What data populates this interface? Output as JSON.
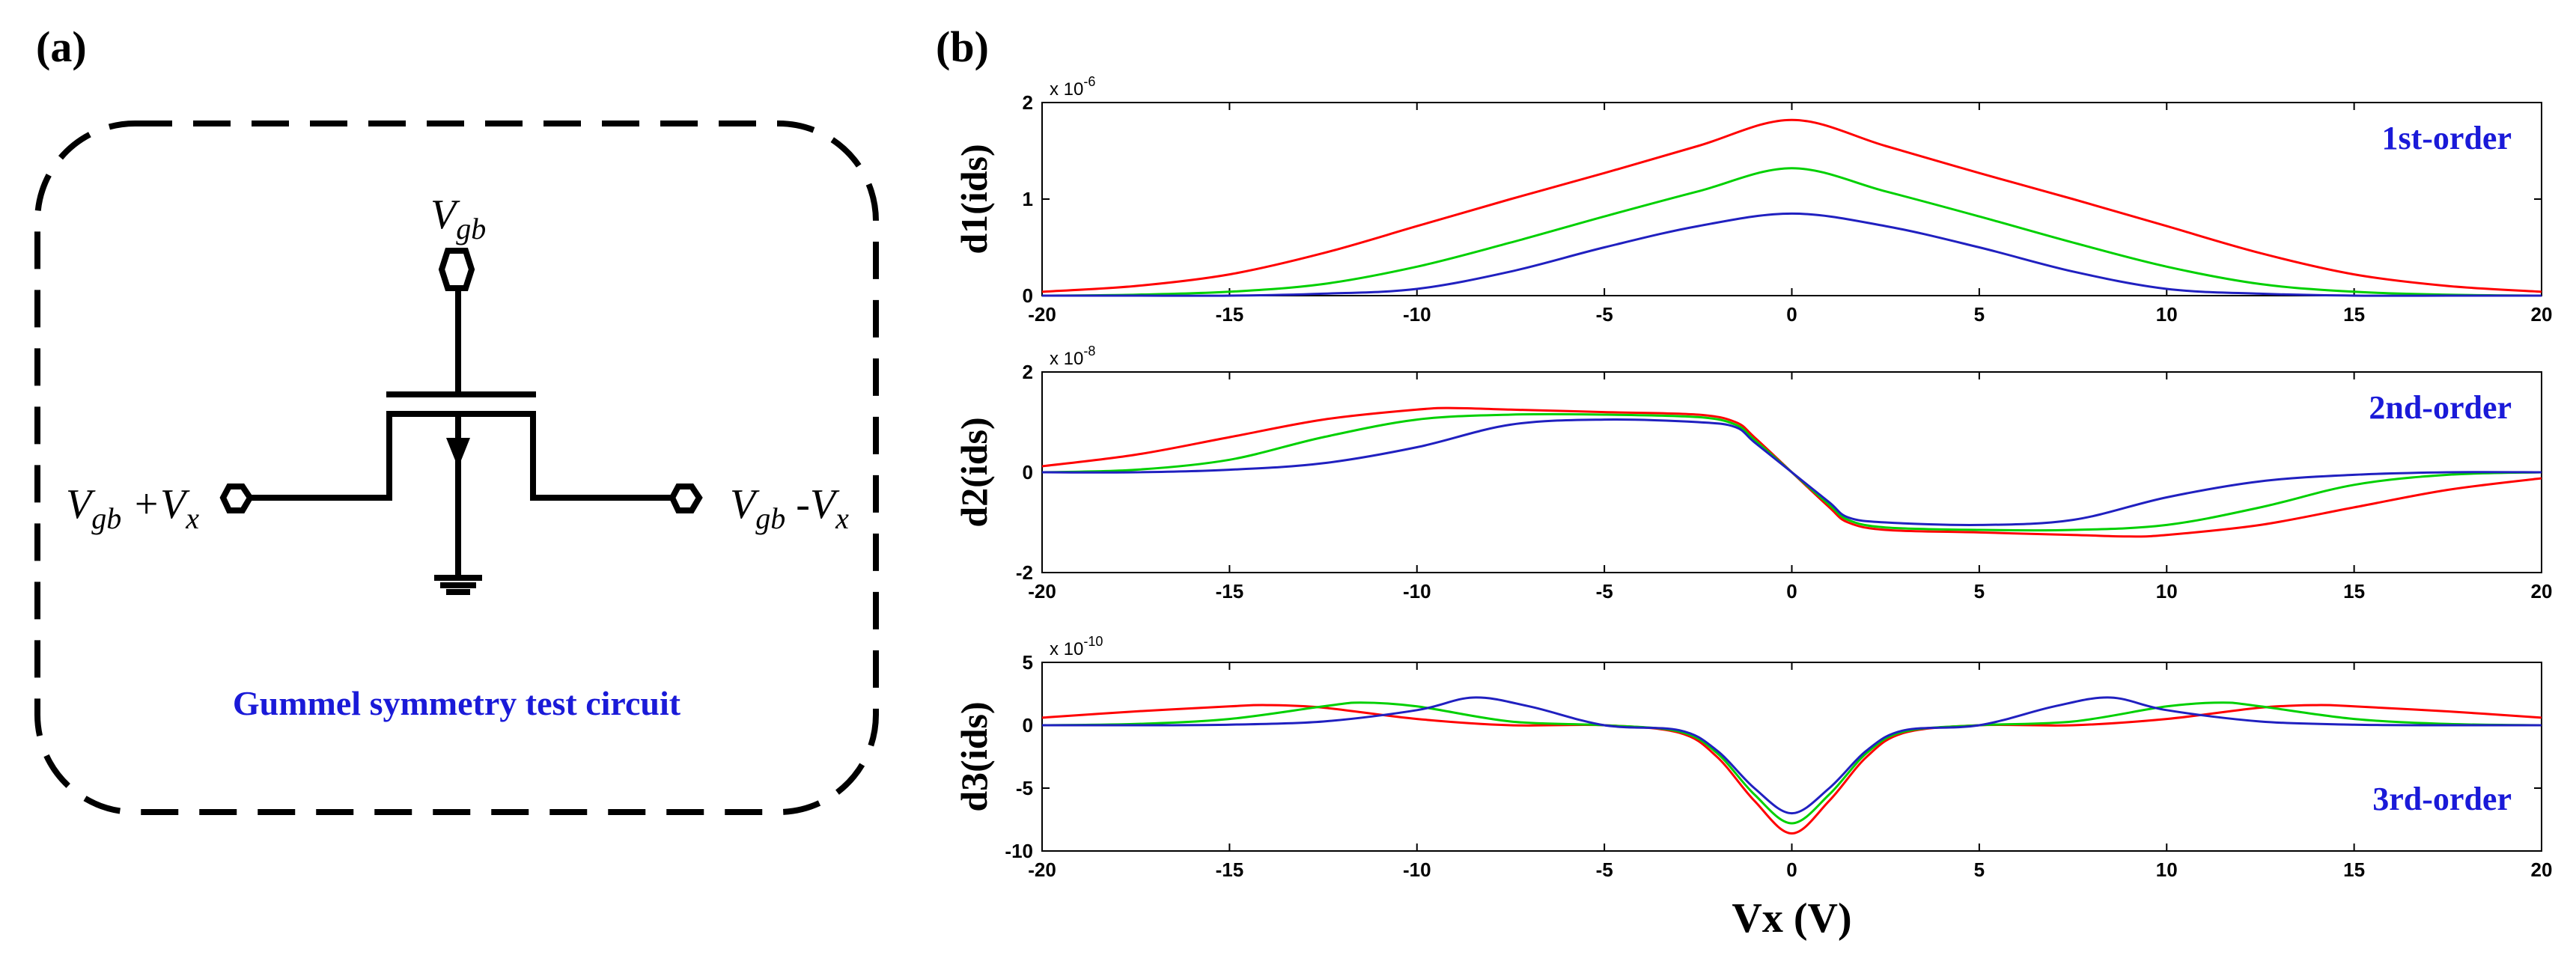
{
  "panel_a": {
    "label": "(a)",
    "top_node": {
      "main": "V",
      "sub": "gb"
    },
    "left_node": {
      "main": "V",
      "sub": "gb",
      "suffix_main": " +V",
      "suffix_sub": "x"
    },
    "right_node": {
      "main": "V",
      "sub": "gb",
      "suffix_main": " -V",
      "suffix_sub": "x"
    },
    "caption": "Gummel symmetry test circuit"
  },
  "panel_b": {
    "label": "(b)"
  },
  "colors": {
    "red": "#ff0000",
    "green": "#00d000",
    "blue": "#2020c0",
    "caption_blue": "#1a1ad8"
  },
  "chart_data": [
    {
      "type": "line",
      "title": "",
      "order_label": "1st-order",
      "ylabel": "d1(ids)",
      "xlabel": "",
      "exp_base": "x 10",
      "exp_power": "-6",
      "xlim": [
        -20,
        20
      ],
      "ylim": [
        0,
        2
      ],
      "xticks": [
        -20,
        -15,
        -10,
        -5,
        0,
        5,
        10,
        15,
        20
      ],
      "yticks": [
        0,
        1,
        2
      ],
      "series": [
        {
          "color": "red",
          "x": [
            -20,
            -17.5,
            -15,
            -12.5,
            -10,
            -7.5,
            -5,
            -2.5,
            0,
            2.5,
            5,
            7.5,
            10,
            12.5,
            15,
            17.5,
            20
          ],
          "y": [
            0.04,
            0.1,
            0.22,
            0.44,
            0.72,
            1.0,
            1.27,
            1.55,
            1.82,
            1.55,
            1.27,
            1.0,
            0.72,
            0.44,
            0.22,
            0.1,
            0.04
          ]
        },
        {
          "color": "green",
          "x": [
            -20,
            -17.5,
            -15,
            -12.5,
            -10,
            -7.5,
            -5,
            -2.5,
            0,
            2.5,
            5,
            7.5,
            10,
            12.5,
            15,
            17.5,
            20
          ],
          "y": [
            0.0,
            0.01,
            0.04,
            0.12,
            0.3,
            0.55,
            0.82,
            1.08,
            1.32,
            1.08,
            0.82,
            0.55,
            0.3,
            0.12,
            0.04,
            0.01,
            0.0
          ]
        },
        {
          "color": "blue",
          "x": [
            -20,
            -17.5,
            -15,
            -12.5,
            -10,
            -7.5,
            -5,
            -2.5,
            0,
            2.5,
            5,
            7.5,
            10,
            12.5,
            15,
            17.5,
            20
          ],
          "y": [
            0.0,
            0.0,
            0.0,
            0.02,
            0.07,
            0.25,
            0.5,
            0.72,
            0.85,
            0.72,
            0.5,
            0.25,
            0.07,
            0.02,
            0.0,
            0.0,
            0.0
          ]
        }
      ]
    },
    {
      "type": "line",
      "title": "",
      "order_label": "2nd-order",
      "ylabel": "d2(ids)",
      "xlabel": "",
      "exp_base": "x 10",
      "exp_power": "-8",
      "xlim": [
        -20,
        20
      ],
      "ylim": [
        -2,
        2
      ],
      "xticks": [
        -20,
        -15,
        -10,
        -5,
        0,
        5,
        10,
        15,
        20
      ],
      "yticks": [
        -2,
        0,
        2
      ],
      "series": [
        {
          "color": "red",
          "x": [
            -20,
            -17.5,
            -15,
            -12.5,
            -10,
            -9,
            -7.5,
            -5,
            -2.5,
            -1.5,
            -1,
            0,
            1,
            1.5,
            2.5,
            5,
            7.5,
            9,
            10,
            12.5,
            15,
            17.5,
            20
          ],
          "y": [
            0.12,
            0.35,
            0.7,
            1.05,
            1.25,
            1.28,
            1.25,
            1.2,
            1.15,
            1.0,
            0.7,
            0,
            -0.7,
            -1.0,
            -1.15,
            -1.2,
            -1.25,
            -1.28,
            -1.25,
            -1.05,
            -0.7,
            -0.35,
            -0.12
          ]
        },
        {
          "color": "green",
          "x": [
            -20,
            -17.5,
            -15,
            -12.5,
            -10,
            -7.5,
            -5,
            -2.5,
            -1.5,
            -1,
            0,
            1,
            1.5,
            2.5,
            5,
            7.5,
            10,
            12.5,
            15,
            17.5,
            20
          ],
          "y": [
            0.0,
            0.05,
            0.25,
            0.7,
            1.05,
            1.15,
            1.15,
            1.1,
            0.95,
            0.65,
            0,
            -0.65,
            -0.95,
            -1.1,
            -1.15,
            -1.15,
            -1.05,
            -0.7,
            -0.25,
            -0.05,
            0.0
          ]
        },
        {
          "color": "blue",
          "x": [
            -20,
            -17.5,
            -15,
            -12.5,
            -10,
            -7.5,
            -5,
            -2.5,
            -1.5,
            -1,
            0,
            1,
            1.5,
            2.5,
            5,
            7.5,
            10,
            12.5,
            15,
            17.5,
            20
          ],
          "y": [
            0.0,
            0.0,
            0.05,
            0.18,
            0.5,
            0.95,
            1.05,
            1.0,
            0.9,
            0.6,
            0,
            -0.6,
            -0.9,
            -1.0,
            -1.05,
            -0.95,
            -0.5,
            -0.18,
            -0.05,
            0.0,
            0.0
          ]
        }
      ]
    },
    {
      "type": "line",
      "title": "",
      "order_label": "3rd-order",
      "ylabel": "d3(ids)",
      "xlabel": "Vx (V)",
      "exp_base": "x 10",
      "exp_power": "-10",
      "xlim": [
        -20,
        20
      ],
      "ylim": [
        -10,
        5
      ],
      "xticks": [
        -20,
        -15,
        -10,
        -5,
        0,
        5,
        10,
        15,
        20
      ],
      "yticks": [
        -10,
        -5,
        0,
        5
      ],
      "series": [
        {
          "color": "red",
          "x": [
            -20,
            -17.5,
            -15,
            -14,
            -12.5,
            -10,
            -7.5,
            -5,
            -3,
            -2,
            -1,
            0,
            1,
            2,
            3,
            5,
            7.5,
            10,
            12.5,
            14,
            15,
            17.5,
            20
          ],
          "y": [
            0.6,
            1.1,
            1.5,
            1.6,
            1.4,
            0.5,
            0.0,
            0.0,
            -0.6,
            -2.5,
            -6.0,
            -8.6,
            -6.0,
            -2.5,
            -0.6,
            0.0,
            0.0,
            0.5,
            1.4,
            1.6,
            1.5,
            1.1,
            0.6
          ]
        },
        {
          "color": "green",
          "x": [
            -20,
            -17.5,
            -15,
            -12.5,
            -11.5,
            -10,
            -7.5,
            -5,
            -3,
            -2,
            -1,
            0,
            1,
            2,
            3,
            5,
            7.5,
            10,
            11.5,
            12.5,
            15,
            17.5,
            20
          ],
          "y": [
            0.0,
            0.1,
            0.5,
            1.5,
            1.8,
            1.5,
            0.3,
            0.0,
            -0.5,
            -2.2,
            -5.5,
            -7.8,
            -5.5,
            -2.2,
            -0.5,
            0.0,
            0.3,
            1.5,
            1.8,
            1.5,
            0.5,
            0.1,
            0.0
          ]
        },
        {
          "color": "blue",
          "x": [
            -20,
            -17.5,
            -15,
            -12.5,
            -10,
            -8.5,
            -7,
            -5,
            -3,
            -2,
            -1,
            0,
            1,
            2,
            3,
            5,
            7,
            8.5,
            10,
            12.5,
            15,
            17.5,
            20
          ],
          "y": [
            0.0,
            0.0,
            0.05,
            0.3,
            1.2,
            2.2,
            1.5,
            0.0,
            -0.4,
            -2.0,
            -5.0,
            -7.0,
            -5.0,
            -2.0,
            -0.4,
            0.0,
            1.5,
            2.2,
            1.2,
            0.3,
            0.05,
            0.0,
            0.0
          ]
        }
      ]
    }
  ]
}
